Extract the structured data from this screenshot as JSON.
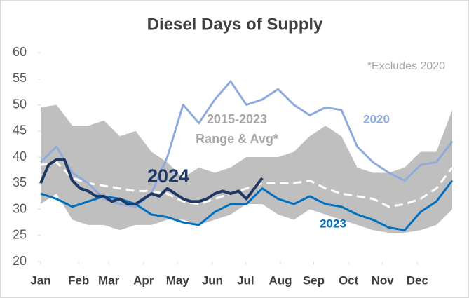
{
  "chart_data": {
    "type": "line",
    "title": "Diesel Days of Supply",
    "x": [
      1,
      3,
      5,
      7,
      9,
      11,
      13,
      15,
      17,
      19,
      21,
      23,
      25,
      27,
      29,
      31,
      33,
      35,
      37,
      39,
      41,
      43,
      45,
      47,
      49,
      51,
      53
    ],
    "band": {
      "label": [
        "2015-2023",
        "Range & Avg*"
      ],
      "color": "#bfbfbf",
      "upper": [
        49.5,
        50,
        46,
        46,
        47,
        44,
        45,
        41,
        39,
        36,
        38,
        37,
        38,
        40,
        40,
        40,
        41,
        44,
        46,
        44,
        38,
        37,
        37,
        38,
        41,
        41,
        49
      ],
      "lower": [
        31,
        33,
        28,
        27,
        27,
        26,
        27,
        27,
        28,
        28,
        27,
        28,
        29,
        31,
        31,
        29,
        28,
        30,
        29,
        28,
        27,
        26,
        25.5,
        25.5,
        26,
        27,
        30
      ],
      "avg": [
        38.5,
        39,
        36,
        35,
        34.5,
        34,
        33.5,
        33.5,
        33,
        31.5,
        31,
        32,
        33,
        34,
        35,
        35,
        35,
        35.5,
        34,
        33,
        32.5,
        32,
        30.5,
        31,
        32,
        34,
        38
      ],
      "avg_color": "#ffffff"
    },
    "series": [
      {
        "name": "2020",
        "color": "#8faadc",
        "values": [
          39,
          42,
          37,
          35,
          32,
          31,
          30.5,
          33,
          40,
          50,
          46.5,
          51,
          54.5,
          50,
          51,
          53,
          50,
          48,
          49.5,
          49,
          42,
          39,
          37,
          35.5,
          38.5,
          39,
          43
        ]
      },
      {
        "name": "2023",
        "color": "#0070c0",
        "values": [
          33,
          32,
          30.5,
          31.5,
          32.5,
          32,
          31,
          29,
          28.5,
          27.5,
          27,
          29.5,
          31,
          31,
          34,
          32,
          31,
          32.5,
          31,
          30.5,
          29,
          28,
          26.5,
          26,
          29.5,
          31.5,
          35.5
        ]
      },
      {
        "name": "2024",
        "color": "#1f3864",
        "x": [
          1,
          2,
          3,
          4,
          5,
          6,
          7,
          8,
          9,
          10,
          11,
          12,
          13,
          14,
          15,
          16,
          17,
          18,
          19,
          20,
          21,
          22,
          23,
          24,
          25,
          26,
          27,
          28,
          29
        ],
        "values": [
          35,
          38.5,
          39.5,
          39.5,
          35.5,
          34,
          33.5,
          32.5,
          32.5,
          31.5,
          32,
          31,
          31,
          32,
          33,
          32.5,
          34,
          33,
          32,
          31.5,
          31.5,
          32,
          33,
          33.5,
          33,
          33.5,
          32,
          34,
          36
        ]
      }
    ],
    "annotation": "*Excludes 2020",
    "xlim": [
      1,
      53
    ],
    "xticks": [
      {
        "value": 1,
        "label": "Jan"
      },
      {
        "value": 5.8,
        "label": "Feb"
      },
      {
        "value": 9.6,
        "label": "Mar"
      },
      {
        "value": 14,
        "label": "Apr"
      },
      {
        "value": 18.3,
        "label": "May"
      },
      {
        "value": 22.7,
        "label": "Jun"
      },
      {
        "value": 26.9,
        "label": "Jul"
      },
      {
        "value": 31.3,
        "label": "Aug"
      },
      {
        "value": 35.5,
        "label": "Sep"
      },
      {
        "value": 39.9,
        "label": "Oct"
      },
      {
        "value": 44.2,
        "label": "Nov"
      },
      {
        "value": 48.6,
        "label": "Dec"
      }
    ],
    "ylim": [
      20,
      60
    ],
    "yticks": [
      20,
      25,
      30,
      35,
      40,
      45,
      50,
      55,
      60
    ],
    "grid": false
  }
}
